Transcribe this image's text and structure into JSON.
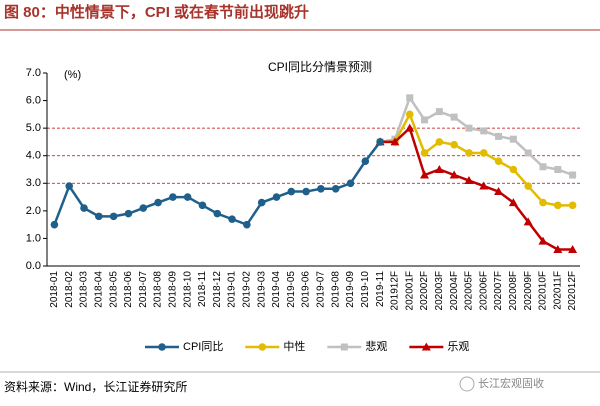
{
  "header": {
    "title": "图 80：中性情景下，CPI 或在春节前出现跳升"
  },
  "chart_data": {
    "type": "line",
    "title": "CPI同比分情景预测",
    "y_unit_label": "(%)",
    "categories": [
      "2018-01",
      "2018-02",
      "2018-03",
      "2018-04",
      "2018-05",
      "2018-06",
      "2018-07",
      "2018-08",
      "2018-09",
      "2018-10",
      "2018-11",
      "2018-12",
      "2019-01",
      "2019-02",
      "2019-03",
      "2019-04",
      "2019-05",
      "2019-06",
      "2019-07",
      "2019-08",
      "2019-09",
      "2019-10",
      "2019-11",
      "201912F",
      "202001F",
      "202002F",
      "202003F",
      "202004F",
      "202005F",
      "202006F",
      "202007F",
      "202008F",
      "202009F",
      "202010F",
      "202011F",
      "202012F"
    ],
    "series": [
      {
        "name": "CPI同比",
        "color": "#1f5f8b",
        "marker": "circle",
        "values": [
          1.5,
          2.9,
          2.1,
          1.8,
          1.8,
          1.9,
          2.1,
          2.3,
          2.5,
          2.5,
          2.2,
          1.9,
          1.7,
          1.5,
          2.3,
          2.5,
          2.7,
          2.7,
          2.8,
          2.8,
          3.0,
          3.8,
          4.5,
          null,
          null,
          null,
          null,
          null,
          null,
          null,
          null,
          null,
          null,
          null,
          null,
          null
        ]
      },
      {
        "name": "中性",
        "color": "#e3bb00",
        "marker": "circle",
        "values": [
          null,
          null,
          null,
          null,
          null,
          null,
          null,
          null,
          null,
          null,
          null,
          null,
          null,
          null,
          null,
          null,
          null,
          null,
          null,
          null,
          null,
          null,
          4.5,
          4.5,
          5.5,
          4.1,
          4.5,
          4.4,
          4.1,
          4.1,
          3.8,
          3.5,
          2.9,
          2.3,
          2.2,
          2.2
        ]
      },
      {
        "name": "悲观",
        "color": "#c0c0c0",
        "marker": "square",
        "values": [
          null,
          null,
          null,
          null,
          null,
          null,
          null,
          null,
          null,
          null,
          null,
          null,
          null,
          null,
          null,
          null,
          null,
          null,
          null,
          null,
          null,
          null,
          4.5,
          4.6,
          6.1,
          5.3,
          5.6,
          5.4,
          5.0,
          4.9,
          4.7,
          4.6,
          4.1,
          3.6,
          3.5,
          3.3
        ]
      },
      {
        "name": "乐观",
        "color": "#c00000",
        "marker": "triangle",
        "values": [
          null,
          null,
          null,
          null,
          null,
          null,
          null,
          null,
          null,
          null,
          null,
          null,
          null,
          null,
          null,
          null,
          null,
          null,
          null,
          null,
          null,
          null,
          4.5,
          4.5,
          5.0,
          3.3,
          3.5,
          3.3,
          3.1,
          2.9,
          2.7,
          2.3,
          1.6,
          0.9,
          0.6,
          0.6
        ]
      }
    ],
    "draw_order": [
      2,
      1,
      3,
      0
    ],
    "ylim": [
      0,
      7
    ],
    "yticks": [
      {
        "value": 0,
        "label": "0.0"
      },
      {
        "value": 1,
        "label": "1.0"
      },
      {
        "value": 2,
        "label": "2.0"
      },
      {
        "value": 3,
        "label": "3.0"
      },
      {
        "value": 4,
        "label": "4.0"
      },
      {
        "value": 5,
        "label": "5.0"
      },
      {
        "value": 6,
        "label": "6.0"
      },
      {
        "value": 7,
        "label": "7.0"
      }
    ],
    "reference_lines": [
      3,
      4,
      5
    ],
    "reference_color": "#c00000",
    "legend": "bottom"
  },
  "footer": {
    "source": "资料来源：Wind，长江证券研究所",
    "watermark": "长江宏观固收"
  }
}
